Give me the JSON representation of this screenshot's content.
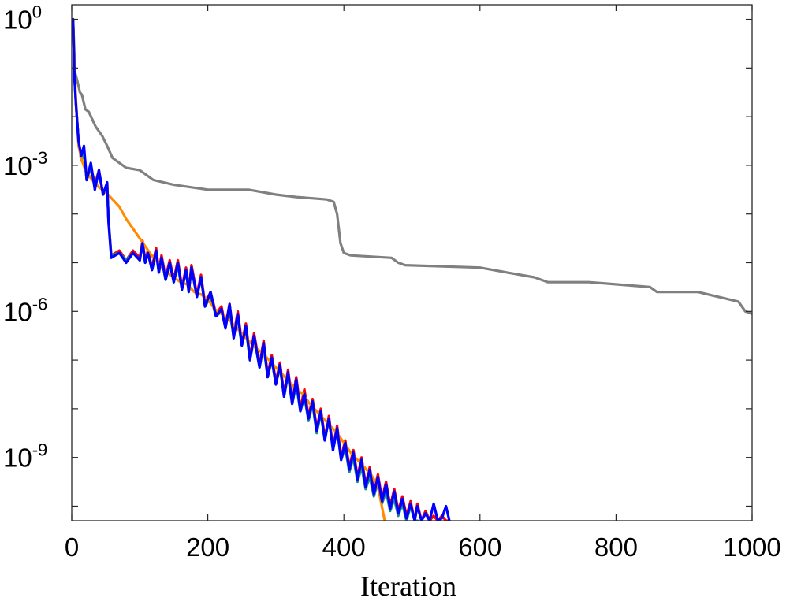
{
  "chart_data": {
    "type": "line",
    "title": "",
    "xlabel": "Iteration",
    "ylabel": "",
    "xlim": [
      0,
      1000
    ],
    "ylim_log10": [
      -10.3,
      0.3
    ],
    "yscale": "log",
    "grid": false,
    "x_ticks": [
      0,
      200,
      400,
      600,
      800,
      1000
    ],
    "x_tick_labels": [
      "0",
      "200",
      "400",
      "600",
      "800",
      "1000"
    ],
    "y_tick_exponents": [
      0,
      -3,
      -6,
      -9
    ],
    "y_tick_labels": [
      {
        "base": "10",
        "exp": "0"
      },
      {
        "base": "10",
        "exp": "-3"
      },
      {
        "base": "10",
        "exp": "-6"
      },
      {
        "base": "10",
        "exp": "-9"
      }
    ],
    "series": [
      {
        "color": "#808080",
        "x": [
          2,
          5,
          8,
          12,
          15,
          20,
          25,
          35,
          45,
          52,
          60,
          70,
          80,
          100,
          120,
          150,
          200,
          260,
          300,
          330,
          375,
          385,
          390,
          395,
          400,
          410,
          470,
          480,
          490,
          600,
          640,
          680,
          700,
          760,
          850,
          860,
          880,
          920,
          980,
          990,
          1000
        ],
        "y": [
          0.0,
          -1.1,
          -1.25,
          -1.5,
          -1.55,
          -1.85,
          -1.9,
          -2.2,
          -2.4,
          -2.6,
          -2.85,
          -2.95,
          -3.05,
          -3.1,
          -3.3,
          -3.4,
          -3.5,
          -3.5,
          -3.6,
          -3.65,
          -3.7,
          -3.75,
          -4.0,
          -4.6,
          -4.8,
          -4.85,
          -4.9,
          -5.0,
          -5.05,
          -5.1,
          -5.2,
          -5.3,
          -5.4,
          -5.4,
          -5.5,
          -5.6,
          -5.6,
          -5.6,
          -5.8,
          -6.0,
          -6.05
        ]
      },
      {
        "color": "#ff0000",
        "x": [
          2,
          4,
          6,
          10,
          14,
          18,
          22,
          28,
          34,
          40,
          46,
          52,
          54,
          58,
          70,
          80,
          90,
          100,
          104,
          108,
          112,
          118,
          124,
          128,
          132,
          138,
          144,
          150,
          156,
          162,
          168,
          172,
          176,
          184,
          190,
          196,
          204,
          212,
          220,
          226,
          232,
          238,
          244,
          250,
          256,
          262,
          268,
          276,
          282,
          288,
          294,
          300,
          306,
          312,
          318,
          324,
          330,
          336,
          342,
          348,
          354,
          360,
          366,
          372,
          378,
          384,
          390,
          396,
          402,
          408,
          414,
          420,
          426,
          432,
          438,
          444,
          450,
          456,
          462,
          468,
          474,
          480,
          486,
          492,
          498,
          504,
          508,
          514,
          520,
          526,
          532,
          538,
          544,
          550,
          555
        ],
        "y": [
          0.0,
          -1.2,
          -1.7,
          -2.5,
          -2.9,
          -2.7,
          -3.3,
          -3.0,
          -3.4,
          -3.1,
          -3.6,
          -3.4,
          -4.1,
          -4.85,
          -4.75,
          -4.95,
          -4.75,
          -4.9,
          -4.55,
          -4.95,
          -4.75,
          -5.1,
          -4.7,
          -5.15,
          -4.85,
          -5.3,
          -4.95,
          -5.35,
          -4.95,
          -5.5,
          -5.1,
          -5.55,
          -5.05,
          -5.65,
          -5.25,
          -5.85,
          -5.6,
          -6.05,
          -5.9,
          -6.3,
          -5.85,
          -6.5,
          -6.0,
          -6.65,
          -6.25,
          -6.95,
          -6.45,
          -7.1,
          -6.6,
          -7.3,
          -6.9,
          -7.45,
          -7.05,
          -7.7,
          -7.2,
          -7.85,
          -7.35,
          -8.0,
          -7.6,
          -8.15,
          -7.8,
          -8.4,
          -8.0,
          -8.6,
          -8.15,
          -8.8,
          -8.35,
          -9.0,
          -8.65,
          -9.2,
          -8.85,
          -9.4,
          -9.0,
          -9.55,
          -9.2,
          -9.7,
          -9.35,
          -9.85,
          -9.5,
          -10.0,
          -9.65,
          -10.1,
          -9.8,
          -10.2,
          -9.9,
          -10.3,
          -9.95,
          -10.3,
          -10.1,
          -10.3,
          -10.2,
          -10.3,
          -10.2,
          -10.3,
          -10.3
        ]
      },
      {
        "color": "#1a8a8a",
        "x": [
          2,
          4,
          6,
          10,
          14,
          18,
          22,
          28,
          34,
          40,
          46,
          52,
          54,
          58,
          70,
          80,
          90,
          100,
          104,
          108,
          112,
          118,
          124,
          128,
          132,
          138,
          144,
          150,
          156,
          162,
          168,
          172,
          176,
          184,
          190,
          196,
          204,
          212,
          220,
          226,
          232,
          238,
          244,
          250,
          256,
          262,
          268,
          276,
          282,
          288,
          294,
          300,
          306,
          312,
          318,
          324,
          330,
          336,
          342,
          348,
          354,
          360,
          366,
          372,
          378,
          384,
          390,
          396,
          402,
          408,
          414,
          420,
          426,
          432,
          438,
          444,
          450,
          456,
          462,
          468,
          474,
          480,
          486,
          492,
          498,
          504,
          508
        ],
        "y": [
          0.0,
          -1.2,
          -1.7,
          -2.5,
          -2.9,
          -2.75,
          -3.3,
          -3.05,
          -3.4,
          -3.15,
          -3.6,
          -3.45,
          -4.1,
          -4.85,
          -4.8,
          -4.95,
          -4.8,
          -4.95,
          -4.6,
          -5.0,
          -4.8,
          -5.15,
          -4.8,
          -5.2,
          -4.9,
          -5.35,
          -5.0,
          -5.4,
          -5.05,
          -5.55,
          -5.15,
          -5.6,
          -5.1,
          -5.7,
          -5.3,
          -5.9,
          -5.7,
          -6.1,
          -6.0,
          -6.3,
          -6.0,
          -6.5,
          -6.15,
          -6.7,
          -6.35,
          -7.0,
          -6.55,
          -7.15,
          -6.7,
          -7.35,
          -7.0,
          -7.5,
          -7.15,
          -7.75,
          -7.3,
          -7.9,
          -7.5,
          -8.05,
          -7.75,
          -8.25,
          -7.9,
          -8.5,
          -8.1,
          -8.65,
          -8.2,
          -8.85,
          -8.4,
          -9.05,
          -8.8,
          -9.3,
          -9.0,
          -9.5,
          -9.2,
          -9.65,
          -9.4,
          -9.8,
          -9.5,
          -9.95,
          -9.7,
          -10.1,
          -9.85,
          -10.2,
          -9.95,
          -10.3,
          -10.0,
          -10.3,
          -10.3
        ]
      },
      {
        "color": "#ff8c00",
        "x": [
          2,
          4,
          6,
          8,
          10,
          15,
          20,
          25,
          30,
          40,
          50,
          60,
          70,
          80,
          90,
          100,
          110,
          120,
          130,
          140,
          150,
          160,
          170,
          180,
          190,
          200,
          210,
          220,
          230,
          240,
          250,
          260,
          270,
          280,
          290,
          300,
          310,
          320,
          330,
          340,
          350,
          360,
          370,
          380,
          390,
          400,
          410,
          420,
          430,
          440,
          450,
          455,
          460
        ],
        "y": [
          0.0,
          -1.0,
          -1.6,
          -2.1,
          -2.6,
          -2.9,
          -3.1,
          -3.2,
          -3.3,
          -3.45,
          -3.55,
          -3.7,
          -3.85,
          -4.1,
          -4.3,
          -4.5,
          -4.7,
          -4.9,
          -5.05,
          -5.2,
          -5.3,
          -5.4,
          -5.45,
          -5.6,
          -5.65,
          -5.75,
          -5.95,
          -6.05,
          -6.15,
          -6.3,
          -6.45,
          -6.6,
          -6.75,
          -6.85,
          -7.0,
          -7.15,
          -7.3,
          -7.45,
          -7.6,
          -7.7,
          -7.9,
          -8.05,
          -8.2,
          -8.35,
          -8.5,
          -8.7,
          -8.9,
          -9.05,
          -9.2,
          -9.35,
          -9.6,
          -9.95,
          -10.3
        ]
      },
      {
        "color": "#0000ff",
        "x": [
          2,
          4,
          6,
          10,
          14,
          18,
          22,
          28,
          34,
          40,
          46,
          52,
          54,
          58,
          70,
          80,
          90,
          100,
          104,
          108,
          112,
          118,
          124,
          128,
          132,
          138,
          144,
          150,
          156,
          162,
          168,
          172,
          176,
          184,
          190,
          196,
          204,
          212,
          220,
          226,
          232,
          238,
          244,
          250,
          256,
          262,
          268,
          276,
          282,
          288,
          294,
          300,
          306,
          312,
          318,
          324,
          330,
          336,
          342,
          348,
          354,
          360,
          366,
          372,
          378,
          384,
          390,
          396,
          402,
          408,
          414,
          420,
          426,
          432,
          438,
          444,
          450,
          456,
          462,
          468,
          474,
          480,
          486,
          492,
          498,
          504,
          508,
          514,
          520,
          526,
          532,
          538,
          544,
          550,
          555
        ],
        "y": [
          0.0,
          -1.2,
          -1.7,
          -2.5,
          -2.8,
          -2.6,
          -3.3,
          -2.95,
          -3.5,
          -3.1,
          -3.6,
          -3.35,
          -4.15,
          -4.9,
          -4.8,
          -5.0,
          -4.8,
          -4.95,
          -4.6,
          -5.0,
          -4.8,
          -5.15,
          -4.75,
          -5.2,
          -4.9,
          -5.35,
          -5.0,
          -5.4,
          -5.0,
          -5.55,
          -5.15,
          -5.6,
          -5.1,
          -5.7,
          -5.3,
          -5.9,
          -5.6,
          -6.1,
          -5.95,
          -6.35,
          -5.85,
          -6.55,
          -6.05,
          -6.7,
          -6.3,
          -7.0,
          -6.5,
          -7.15,
          -6.65,
          -7.35,
          -6.95,
          -7.5,
          -7.1,
          -7.75,
          -7.25,
          -7.9,
          -7.4,
          -8.05,
          -7.7,
          -8.2,
          -7.85,
          -8.45,
          -8.05,
          -8.65,
          -8.2,
          -8.85,
          -8.4,
          -9.05,
          -8.7,
          -9.25,
          -8.9,
          -9.45,
          -9.05,
          -9.6,
          -9.25,
          -9.75,
          -9.4,
          -9.9,
          -9.55,
          -10.05,
          -9.7,
          -10.15,
          -9.85,
          -10.25,
          -9.95,
          -10.3,
          -10.0,
          -10.3,
          -10.15,
          -10.3,
          -9.95,
          -10.3,
          -10.25,
          -10.0,
          -10.3
        ]
      }
    ]
  }
}
